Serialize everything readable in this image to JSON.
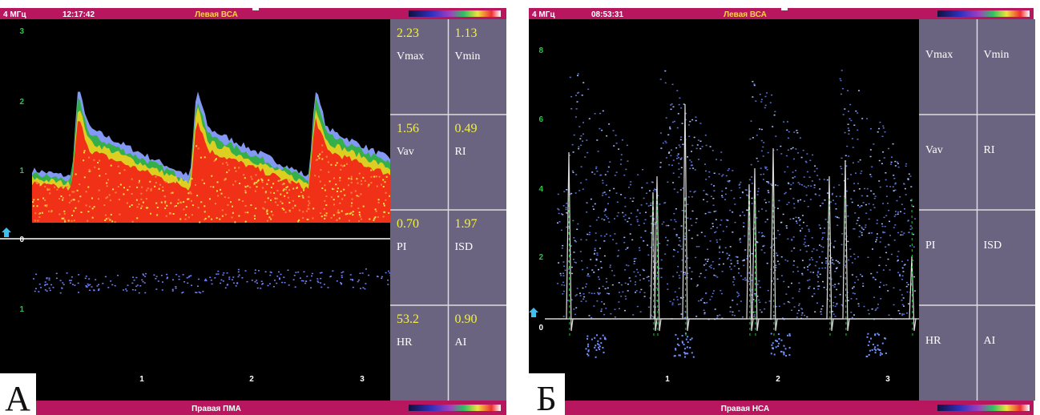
{
  "panels": [
    {
      "letter": "А",
      "header": {
        "frequency": "4 МГц",
        "time": "12:17:42",
        "title": "Левая ВСА"
      },
      "footer": "Правая ПМА",
      "y_labels": [
        "3",
        "2",
        "1",
        "0",
        "1"
      ],
      "x_labels": [
        "1",
        "2",
        "3"
      ],
      "table": [
        [
          {
            "value": "2.23",
            "label": "Vmax"
          },
          {
            "value": "1.13",
            "label": "Vmin"
          }
        ],
        [
          {
            "value": "1.56",
            "label": "Vav"
          },
          {
            "value": "0.49",
            "label": "RI"
          }
        ],
        [
          {
            "value": "0.70",
            "label": "PI"
          },
          {
            "value": "1.97",
            "label": "ISD"
          }
        ],
        [
          {
            "value": "53.2",
            "label": "HR"
          },
          {
            "value": "0.90",
            "label": "AI"
          }
        ]
      ]
    },
    {
      "letter": "Б",
      "header": {
        "frequency": "4 МГц",
        "time": "08:53:31",
        "title": "Левая ВСА"
      },
      "footer": "Правая НСА",
      "y_labels": [
        "8",
        "6",
        "4",
        "2",
        "0"
      ],
      "x_labels": [
        "1",
        "2",
        "3"
      ],
      "table": [
        [
          {
            "label": "Vmax"
          },
          {
            "label": "Vmin"
          }
        ],
        [
          {
            "label": "Vav"
          },
          {
            "label": "RI"
          }
        ],
        [
          {
            "label": "PI"
          },
          {
            "label": "ISD"
          }
        ],
        [
          {
            "label": "HR"
          },
          {
            "label": "AI"
          }
        ]
      ]
    }
  ]
}
